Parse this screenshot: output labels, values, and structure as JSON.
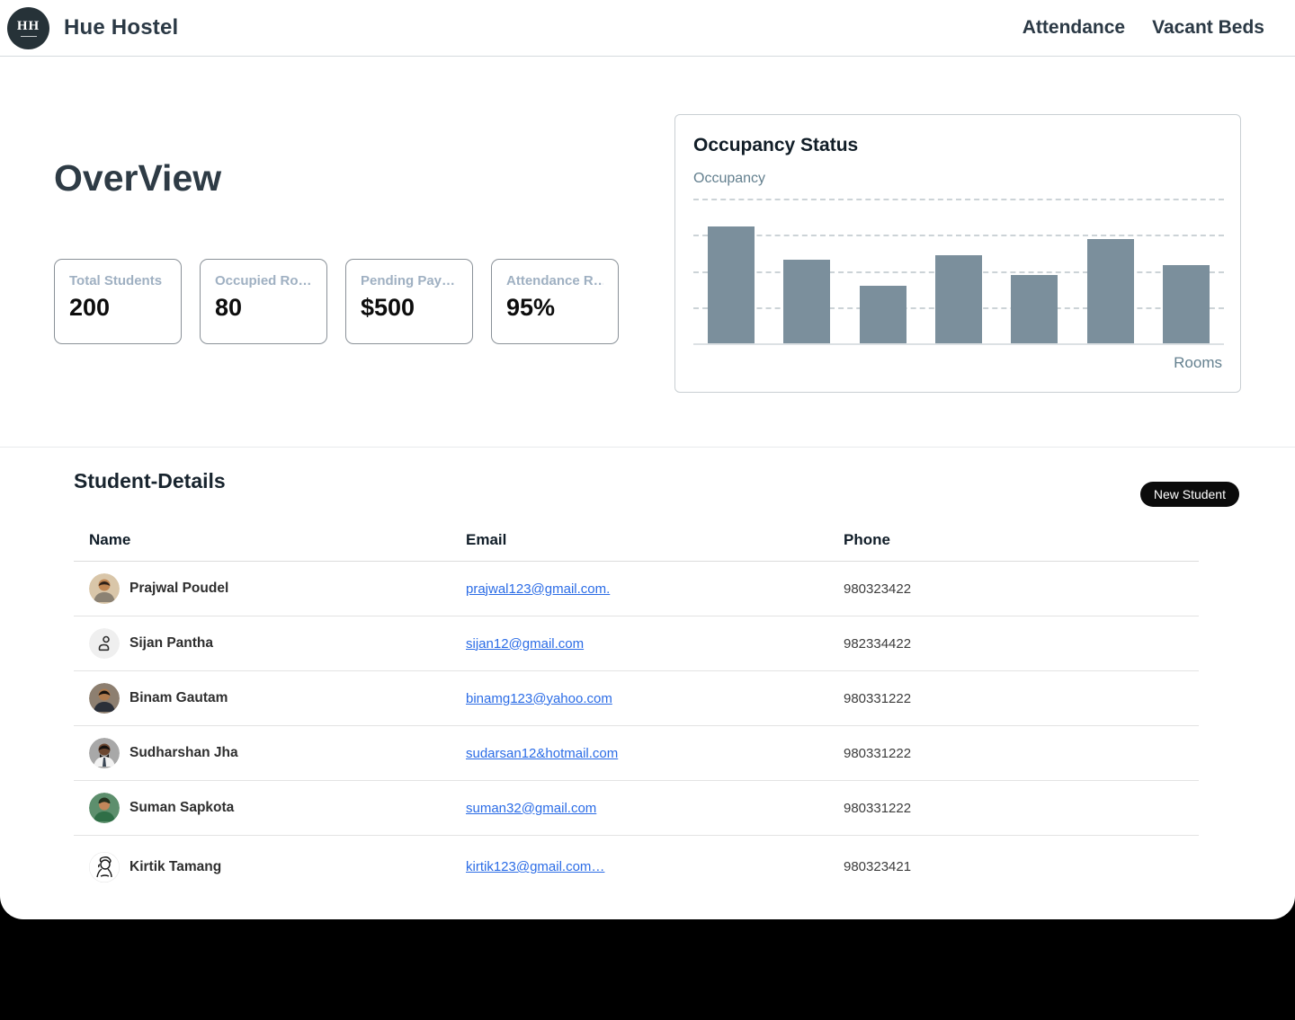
{
  "header": {
    "logo_monogram": "HH",
    "brand": "Hue Hostel",
    "nav": [
      {
        "label": "Attendance"
      },
      {
        "label": "Vacant Beds"
      }
    ]
  },
  "overview": {
    "title": "OverView",
    "cards": [
      {
        "label": "Total Students",
        "value": "200"
      },
      {
        "label": "Occupied Ro…",
        "value": "80"
      },
      {
        "label": "Pending Pay…",
        "value": "$500"
      },
      {
        "label": "Attendance R…",
        "value": "95%"
      }
    ]
  },
  "chart_data": {
    "type": "bar",
    "title": "Occupancy Status",
    "ylabel": "Occupancy",
    "xlabel": "Rooms",
    "values": [
      81,
      58,
      40,
      61,
      47,
      72,
      54
    ],
    "ylim": [
      0,
      100
    ],
    "gridlines": "horizontal dashed every 25, solid baseline at 0",
    "bar_color": "#7b8f9c",
    "tick_labels_visible": false
  },
  "students": {
    "section_title": "Student-Details",
    "new_student_button": "New Student",
    "columns": [
      "Name",
      "Email",
      "Phone"
    ],
    "rows": [
      {
        "name": "Prajwal Poudel",
        "email": "prajwal123@gmail.com.",
        "phone": "980323422"
      },
      {
        "name": "Sijan Pantha",
        "email": "sijan12@gmail.com",
        "phone": "982334422"
      },
      {
        "name": "Binam Gautam",
        "email": "binamg123@yahoo.com",
        "phone": "980331222"
      },
      {
        "name": "Sudharshan Jha",
        "email": "sudarsan12&hotmail.com",
        "phone": "980331222"
      },
      {
        "name": "Suman Sapkota",
        "email": "suman32@gmail.com",
        "phone": "980331222"
      },
      {
        "name": "Kirtik Tamang",
        "email": "kirtik123@gmail.com…",
        "phone": "980323421"
      }
    ]
  },
  "colors": {
    "bar": "#7b8f9c",
    "brand_dark": "#2b3945",
    "link_blue": "#2b6ce6",
    "muted_card_label": "#9fb0c2",
    "axis_label": "#64808f",
    "button_black": "#0b0b0b"
  }
}
